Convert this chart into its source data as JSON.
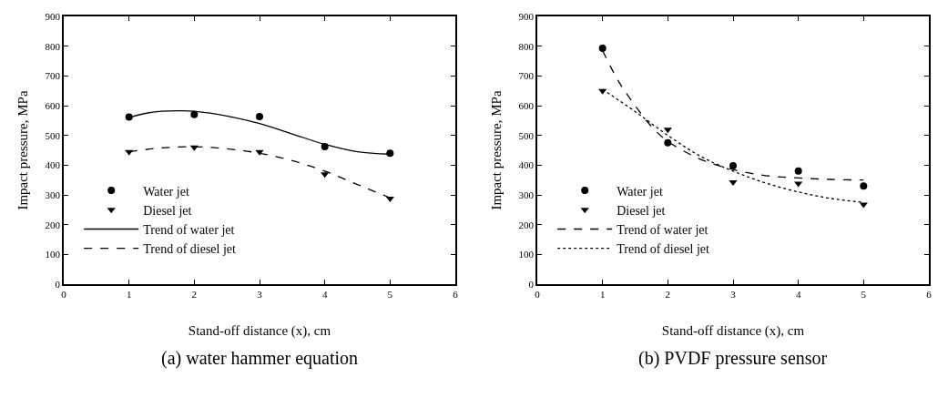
{
  "chart_data": [
    {
      "type": "scatter",
      "title": "(a) water hammer equation",
      "xlabel": "Stand-off distance (x), cm",
      "ylabel": "Impact pressure, MPa",
      "x": [
        1,
        2,
        3,
        4,
        5
      ],
      "xlim": [
        0,
        6
      ],
      "xticks": [
        0,
        1,
        2,
        3,
        4,
        5,
        6
      ],
      "ylim": [
        0,
        900
      ],
      "yticks": [
        0,
        100,
        200,
        300,
        400,
        500,
        600,
        700,
        800,
        900
      ],
      "legend": "bottom left",
      "series": [
        {
          "name": "Water jet",
          "color": "#000000",
          "marker": "circle",
          "values": [
            562,
            570,
            563,
            462,
            440
          ]
        },
        {
          "name": "Diesel jet",
          "color": "#000000",
          "marker": "triangle",
          "values": [
            445,
            460,
            445,
            370,
            288
          ]
        },
        {
          "name": "Trend of water jet",
          "type": "line",
          "color": "#000000",
          "line_style": "solid",
          "x": [
            1,
            1.25,
            1.5,
            1.8,
            2,
            2.5,
            3,
            3.5,
            4,
            4.5,
            5
          ],
          "values": [
            560,
            574,
            581,
            583,
            581,
            565,
            540,
            505,
            470,
            445,
            437
          ]
        },
        {
          "name": "Trend of diesel jet",
          "type": "line",
          "color": "#000000",
          "line_style": "dashed",
          "x": [
            1,
            1.5,
            2,
            2.5,
            3,
            3.5,
            4,
            4.5,
            5
          ],
          "values": [
            445,
            458,
            462,
            455,
            440,
            415,
            380,
            335,
            290
          ]
        }
      ]
    },
    {
      "type": "scatter",
      "title": "(b) PVDF pressure sensor",
      "xlabel": "Stand-off distance (x), cm",
      "ylabel": "Impact pressure, MPa",
      "x": [
        1,
        2,
        3,
        4,
        5
      ],
      "xlim": [
        0,
        6
      ],
      "xticks": [
        0,
        1,
        2,
        3,
        4,
        5,
        6
      ],
      "ylim": [
        0,
        900
      ],
      "yticks": [
        0,
        100,
        200,
        300,
        400,
        500,
        600,
        700,
        800,
        900
      ],
      "legend": "bottom left",
      "series": [
        {
          "name": "Water jet",
          "color": "#000000",
          "marker": "circle",
          "values": [
            793,
            475,
            398,
            380,
            330
          ]
        },
        {
          "name": "Diesel jet",
          "color": "#000000",
          "marker": "triangle",
          "values": [
            650,
            520,
            343,
            338,
            268
          ]
        },
        {
          "name": "Trend of water jet",
          "type": "line",
          "color": "#000000",
          "line_style": "dashed",
          "x": [
            1,
            1.25,
            1.5,
            1.75,
            2,
            2.5,
            3,
            3.5,
            4,
            4.5,
            5
          ],
          "values": [
            785,
            680,
            600,
            530,
            480,
            420,
            385,
            365,
            357,
            352,
            350
          ]
        },
        {
          "name": "Trend of diesel jet",
          "type": "line",
          "color": "#000000",
          "line_style": "dotted",
          "x": [
            1,
            1.5,
            2,
            2.5,
            3,
            3.5,
            4,
            4.5,
            5
          ],
          "values": [
            655,
            580,
            500,
            430,
            380,
            340,
            310,
            288,
            275
          ]
        }
      ]
    }
  ]
}
